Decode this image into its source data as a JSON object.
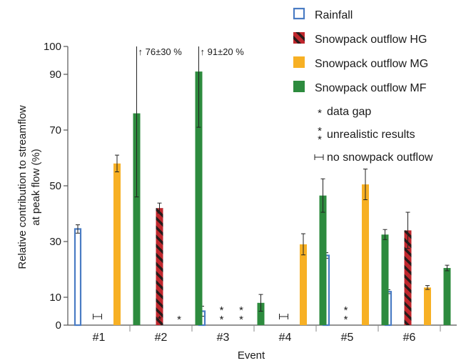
{
  "chart_data": {
    "type": "bar",
    "xlabel": "Event",
    "ylabel_lines": [
      "Relative contribution to streamflow",
      "at peak flow (%)"
    ],
    "ylim": [
      0,
      100
    ],
    "yticks": [
      "0",
      "10",
      "30",
      "50",
      "70",
      "90",
      "100"
    ],
    "categories": [
      "#1",
      "#2",
      "#3",
      "#4",
      "#5",
      "#6"
    ],
    "grid": false,
    "legend_position": "top-right",
    "series": [
      {
        "name": "Rainfall",
        "style": "hollow",
        "color": "#4a7cc4",
        "values": [
          34.5,
          null,
          5,
          null,
          25,
          12
        ],
        "errors": [
          1.5,
          null,
          1.8,
          null,
          1,
          0.7
        ],
        "markers": [
          null,
          null,
          null,
          null,
          null,
          null
        ]
      },
      {
        "name": "Snowpack outflow HG",
        "style": "hatched",
        "color": "#c0272d",
        "hatch_color": "#2a1a1a",
        "values": [
          null,
          42,
          null,
          null,
          null,
          34
        ],
        "errors": [
          null,
          1.8,
          null,
          null,
          null,
          6.5
        ],
        "markers": [
          "no-outflow",
          "gap",
          "unrealistic",
          "no-outflow",
          "unrealistic",
          null
        ]
      },
      {
        "name": "Snowpack outflow MG",
        "style": "solid",
        "color": "#f7b024",
        "values": [
          58,
          null,
          null,
          29,
          50.5,
          13.5
        ],
        "errors": [
          3,
          null,
          null,
          3.8,
          5.5,
          0.7
        ],
        "markers": [
          null,
          "gap",
          "unrealistic",
          null,
          null,
          null
        ]
      },
      {
        "name": "Snowpack outflow MF",
        "style": "solid",
        "color": "#2d8b3e",
        "values": [
          76,
          91,
          8,
          46.5,
          32.5,
          20.5
        ],
        "errors": [
          30,
          20,
          3,
          6,
          1.8,
          1
        ],
        "markers": [
          null,
          null,
          null,
          null,
          null,
          null
        ]
      }
    ],
    "annotations": [
      {
        "text": "↑ 76±30 %",
        "category": "#1",
        "series": "Snowpack outflow MF"
      },
      {
        "text": "↑ 91±20 %",
        "category": "#2",
        "series": "Snowpack outflow MF"
      }
    ],
    "legend_symbols": [
      {
        "symbol": "*",
        "text": "data gap"
      },
      {
        "symbol": "**",
        "text": "unrealistic results"
      },
      {
        "symbol": "⊢",
        "text": "no snowpack outflow"
      }
    ]
  }
}
